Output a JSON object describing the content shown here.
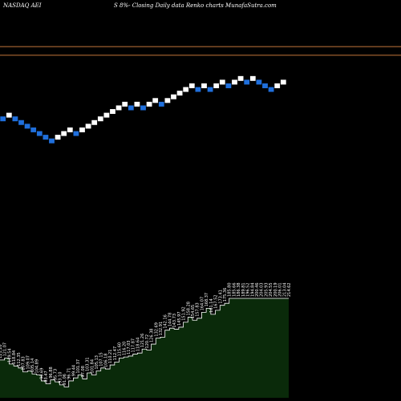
{
  "header": {
    "ticker": "NASDAQ AEI",
    "caption": "S 8%-  Closing Daily data  Renko  charts MunafaSutra.com"
  },
  "chart_data": {
    "type": "renko",
    "title": "",
    "brick_colors": {
      "up": "#ffffff",
      "down": "#1f6fdc"
    },
    "reference_lines": {
      "color": "#c2753a",
      "levels": [
        1.35,
        1.21
      ]
    },
    "price_ylim": [
      -1.4,
      1.85
    ],
    "bricks": [
      {
        "y": 0.17,
        "dir": "down"
      },
      {
        "y": 0.23,
        "dir": "up"
      },
      {
        "y": 0.17,
        "dir": "down"
      },
      {
        "y": 0.11,
        "dir": "down"
      },
      {
        "y": 0.05,
        "dir": "down"
      },
      {
        "y": -0.01,
        "dir": "down"
      },
      {
        "y": -0.07,
        "dir": "down"
      },
      {
        "y": -0.13,
        "dir": "down"
      },
      {
        "y": -0.19,
        "dir": "down"
      },
      {
        "y": -0.13,
        "dir": "up"
      },
      {
        "y": -0.07,
        "dir": "up"
      },
      {
        "y": -0.01,
        "dir": "up"
      },
      {
        "y": -0.07,
        "dir": "down"
      },
      {
        "y": -0.01,
        "dir": "up"
      },
      {
        "y": 0.05,
        "dir": "up"
      },
      {
        "y": 0.11,
        "dir": "up"
      },
      {
        "y": 0.17,
        "dir": "up"
      },
      {
        "y": 0.23,
        "dir": "up"
      },
      {
        "y": 0.29,
        "dir": "up"
      },
      {
        "y": 0.35,
        "dir": "up"
      },
      {
        "y": 0.41,
        "dir": "up"
      },
      {
        "y": 0.35,
        "dir": "down"
      },
      {
        "y": 0.41,
        "dir": "up"
      },
      {
        "y": 0.35,
        "dir": "down"
      },
      {
        "y": 0.41,
        "dir": "up"
      },
      {
        "y": 0.47,
        "dir": "up"
      },
      {
        "y": 0.41,
        "dir": "down"
      },
      {
        "y": 0.47,
        "dir": "up"
      },
      {
        "y": 0.53,
        "dir": "up"
      },
      {
        "y": 0.59,
        "dir": "up"
      },
      {
        "y": 0.65,
        "dir": "up"
      },
      {
        "y": 0.71,
        "dir": "up"
      },
      {
        "y": 0.65,
        "dir": "down"
      },
      {
        "y": 0.71,
        "dir": "up"
      },
      {
        "y": 0.65,
        "dir": "down"
      },
      {
        "y": 0.71,
        "dir": "up"
      },
      {
        "y": 0.77,
        "dir": "up"
      },
      {
        "y": 0.71,
        "dir": "down"
      },
      {
        "y": 0.77,
        "dir": "up"
      },
      {
        "y": 0.83,
        "dir": "up"
      },
      {
        "y": 0.77,
        "dir": "down"
      },
      {
        "y": 0.83,
        "dir": "up"
      },
      {
        "y": 0.77,
        "dir": "down"
      },
      {
        "y": 0.71,
        "dir": "down"
      },
      {
        "y": 0.65,
        "dir": "down"
      },
      {
        "y": 0.71,
        "dir": "up"
      },
      {
        "y": 0.77,
        "dir": "up"
      }
    ],
    "price_labels": [
      "121.20",
      "121.07",
      "119.54",
      "118.84",
      "112.35",
      "107.83",
      "109.07",
      "105.14",
      "104.89",
      "96.69",
      "93.47",
      "96.88",
      "95.73",
      "93.10",
      "91.06",
      "96.71",
      "99.44",
      "101.37",
      "97.08",
      "103.31",
      "101.84",
      "105.13",
      "107.15",
      "106.18",
      "110.21",
      "112.47",
      "115.60",
      "116.20",
      "117.03",
      "117.87",
      "118.64",
      "121.26",
      "120.72",
      "126.38",
      "132.69",
      "132.91",
      "142.16",
      "144.78",
      "143.73",
      "145.97",
      "151.92",
      "158.28",
      "154.65",
      "157.83",
      "164.07",
      "168.37",
      "161.14",
      "167.52",
      "173.41",
      "175.36",
      "185.80",
      "185.66",
      "186.38",
      "189.81",
      "196.52",
      "194.84",
      "200.46",
      "204.03",
      "205.93",
      "204.55",
      "200.19",
      "206.01",
      "213.04",
      "214.62"
    ],
    "volume": [
      0.38,
      0.4,
      0.34,
      0.32,
      0.3,
      0.26,
      0.27,
      0.24,
      0.23,
      0.17,
      0.14,
      0.18,
      0.16,
      0.13,
      0.11,
      0.17,
      0.2,
      0.23,
      0.19,
      0.25,
      0.23,
      0.27,
      0.3,
      0.29,
      0.33,
      0.36,
      0.4,
      0.41,
      0.42,
      0.44,
      0.45,
      0.49,
      0.48,
      0.54,
      0.6,
      0.61,
      0.68,
      0.7,
      0.69,
      0.71,
      0.76,
      0.81,
      0.78,
      0.8,
      0.86,
      0.9,
      0.84,
      0.88,
      0.93,
      0.95,
      1.0,
      1.0,
      1.0,
      1.0,
      1.0,
      1.0,
      1.0,
      1.0,
      1.0,
      1.0,
      1.0,
      1.0,
      1.0,
      1.0
    ],
    "volume_fill": "#0a2a0a",
    "volume_stroke": "#ffffff"
  }
}
